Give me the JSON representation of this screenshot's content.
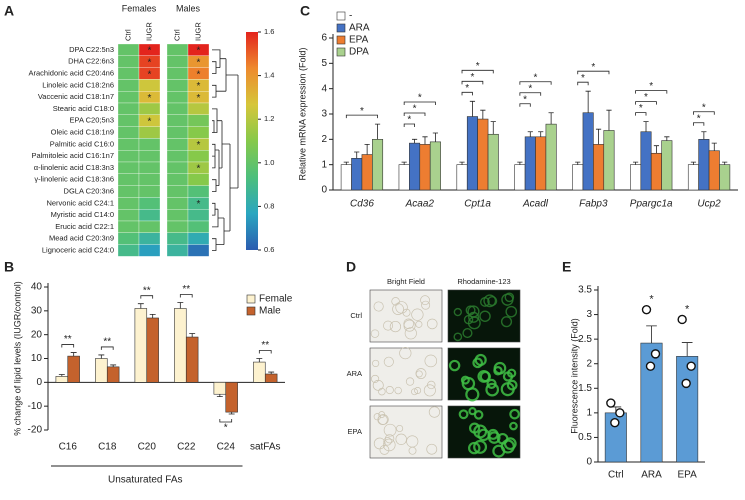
{
  "chart_data": [
    {
      "type": "heatmap",
      "panel": "A",
      "rows": [
        "DPA C22:5n3",
        "DHA C22:6n3",
        "Arachidonic acid C20:4n6",
        "Linoleic acid C18:2n6",
        "Vaccenic acid C18:1n7",
        "Stearic acid C18:0",
        "EPA C20;5n3",
        "Oleic acid C18:1n9",
        "Palmitic acid C16:0",
        "Palmitoleic acid C16:1n7",
        "α-linolenic acid C18:3n3",
        "γ-linolenic acid C18:3n6",
        "DGLA C20:3n6",
        "Nervonic acid C24:1",
        "Myristic acid C14:0",
        "Erucic acid C22:1",
        "Mead acid C20:3n9",
        "Lignoceric acid C24:0"
      ],
      "groups": [
        {
          "name": "Females",
          "series": [
            {
              "name": "Ctrl",
              "values": [
                1,
                1,
                1,
                1,
                1,
                1,
                1,
                1,
                1,
                1,
                1,
                1,
                1,
                1,
                1,
                1,
                0.95,
                0.9
              ]
            },
            {
              "name": "IUGR",
              "values": [
                1.6,
                1.55,
                1.55,
                1.25,
                1.3,
                1.15,
                1.25,
                1.15,
                1,
                1,
                1,
                1,
                1,
                0.95,
                0.9,
                1,
                0.85,
                0.75
              ],
              "significance": [
                "*",
                "*",
                "*",
                null,
                "*",
                null,
                "*",
                null,
                null,
                null,
                null,
                null,
                null,
                null,
                null,
                null,
                null,
                null
              ]
            }
          ]
        },
        {
          "name": "Males",
          "series": [
            {
              "name": "Ctrl",
              "values": [
                1,
                1,
                1,
                1,
                1,
                1,
                1,
                1,
                1,
                1,
                1,
                1,
                1,
                1,
                1,
                1,
                0.9,
                0.85
              ]
            },
            {
              "name": "IUGR",
              "values": [
                1.6,
                1.4,
                1.45,
                1.3,
                1.3,
                1.2,
                1.05,
                1.1,
                1.2,
                1.1,
                1.15,
                1.1,
                0.95,
                0.9,
                0.9,
                0.95,
                0.8,
                0.65
              ],
              "significance": [
                "*",
                "*",
                "*",
                "*",
                "*",
                null,
                null,
                null,
                "*",
                null,
                "*",
                null,
                null,
                "*",
                null,
                null,
                null,
                null
              ]
            }
          ]
        }
      ],
      "clim": [
        0.6,
        1.6
      ],
      "colormap": [
        "#2b5cb0",
        "#2aa6c0",
        "#4dbf7c",
        "#86c94a",
        "#d6c63a",
        "#ee8a2e",
        "#e3241d"
      ],
      "cticks": [
        0.6,
        0.8,
        {
          "value": 1,
          "label": "1.0"
        },
        1.2,
        1.4,
        1.6
      ]
    },
    {
      "type": "grouped_bar",
      "panel": "B",
      "ylabel": "% change of lipid levels (IUGR/control)",
      "categories": [
        "C16",
        "C18",
        "C20",
        "C22",
        "C24",
        "satFAs"
      ],
      "series": [
        {
          "name": "Female",
          "color": "#fdf2cf",
          "values": [
            2.5,
            10,
            31,
            31,
            -5,
            8.5
          ],
          "errors": [
            0.8,
            1.5,
            2,
            2.5,
            1,
            1.5
          ]
        },
        {
          "name": "Male",
          "color": "#c4622d",
          "values": [
            11,
            6.5,
            27,
            19,
            -12.5,
            3.5
          ],
          "errors": [
            1.5,
            0.8,
            1.5,
            1.5,
            0.8,
            0.8
          ]
        }
      ],
      "significance": [
        "**",
        "**",
        "**",
        "**",
        "*",
        "**"
      ],
      "group_label": "Unsaturated FAs",
      "ylim": [
        -20,
        40
      ],
      "yticks": [
        -20,
        -10,
        0,
        10,
        20,
        30,
        40
      ],
      "legend": "upper right"
    },
    {
      "type": "grouped_bar",
      "panel": "C",
      "ylabel": "Relative mRNA expression (Fold)",
      "categories": [
        "Cd36",
        "Acaa2",
        "Cpt1a",
        "Acadl",
        "Fabp3",
        "Ppargc1a",
        "Ucp2"
      ],
      "category_style": "italic",
      "series": [
        {
          "name": "-",
          "color": "#ffffff",
          "values": [
            1,
            1,
            1,
            1,
            1,
            1,
            1
          ],
          "errors": [
            0.1,
            0.1,
            0.1,
            0.1,
            0.1,
            0.1,
            0.1
          ]
        },
        {
          "name": "ARA",
          "color": "#4472c4",
          "values": [
            1.25,
            1.85,
            2.9,
            2.1,
            3.05,
            2.3,
            2.0
          ],
          "errors": [
            0.25,
            0.15,
            0.6,
            0.2,
            0.85,
            0.4,
            0.3
          ],
          "significance": [
            null,
            "*",
            "*",
            "*",
            "*",
            "*",
            "*"
          ]
        },
        {
          "name": "EPA",
          "color": "#ed7d31",
          "values": [
            1.4,
            1.8,
            2.8,
            2.1,
            1.8,
            1.45,
            1.55
          ],
          "errors": [
            0.4,
            0.3,
            0.35,
            0.2,
            0.6,
            0.3,
            0.3
          ],
          "significance": [
            null,
            "*",
            "*",
            "*",
            null,
            "*",
            "*"
          ]
        },
        {
          "name": "DPA",
          "color": "#a9d18e",
          "values": [
            2.0,
            1.9,
            2.2,
            2.6,
            2.35,
            1.95,
            1.0
          ],
          "errors": [
            0.6,
            0.35,
            0.5,
            0.45,
            0.8,
            0.15,
            0.1
          ],
          "significance": [
            "*",
            "*",
            "*",
            "*",
            "*",
            "*",
            null
          ]
        }
      ],
      "ylim": [
        0,
        6
      ],
      "yticks": [
        0,
        1,
        2,
        3,
        4,
        5,
        6
      ],
      "legend": "upper left"
    },
    {
      "type": "bar",
      "panel": "E",
      "ylabel": "Fluorescence intensity (Fold)",
      "categories": [
        "Ctrl",
        "ARA",
        "EPA"
      ],
      "values": [
        1,
        2.42,
        2.15
      ],
      "errors": [
        0.12,
        0.35,
        0.28
      ],
      "color": "#5b9bd5",
      "points": [
        [
          1.2,
          1.0,
          0.8
        ],
        [
          3.1,
          2.2,
          1.95
        ],
        [
          2.9,
          1.95,
          1.6
        ]
      ],
      "significance": [
        null,
        "*",
        "*"
      ],
      "ylim": [
        0,
        3.5
      ],
      "yticks": [
        0,
        0.5,
        1,
        1.5,
        2,
        2.5,
        3,
        3.5
      ]
    }
  ],
  "image_panel": {
    "panel": "D",
    "columns": [
      "Bright Field",
      "Rhodamine-123"
    ],
    "rows": [
      "Ctrl",
      "ARA",
      "EPA"
    ]
  }
}
